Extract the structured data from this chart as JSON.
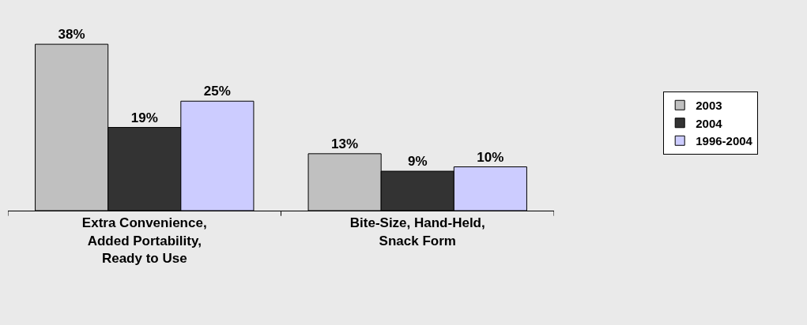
{
  "chart_data": {
    "type": "bar",
    "categories": [
      "Extra Convenience, Added Portability, Ready to Use",
      "Bite-Size, Hand-Held, Snack Form"
    ],
    "series": [
      {
        "name": "2003",
        "color": "#c0c0c0",
        "values": [
          38,
          13
        ],
        "value_labels": [
          "38%",
          "13%"
        ]
      },
      {
        "name": "2004",
        "color": "#333333",
        "values": [
          19,
          9
        ],
        "value_labels": [
          "19%",
          "9%"
        ]
      },
      {
        "name": "1996-2004",
        "color": "#ccccff",
        "values": [
          25,
          10
        ],
        "value_labels": [
          "25%",
          "10%"
        ]
      }
    ],
    "legend": "right"
  }
}
